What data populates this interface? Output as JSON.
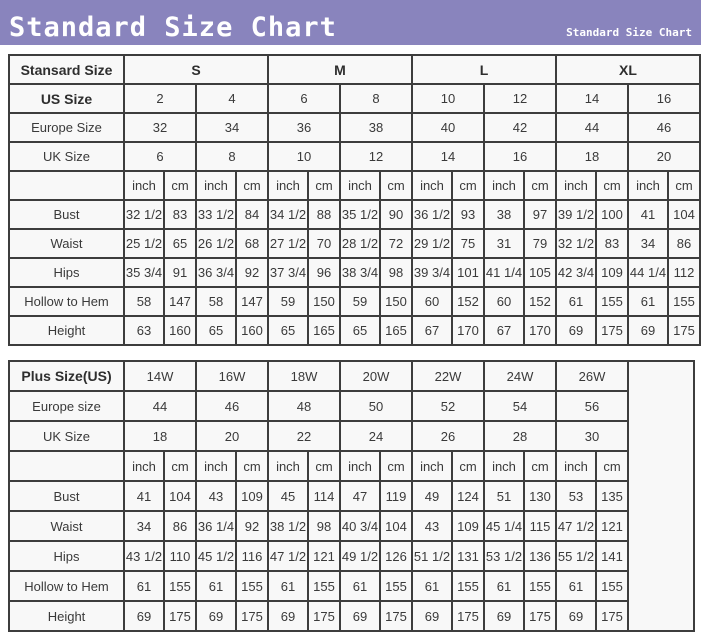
{
  "header": {
    "title": "Standard Size Chart",
    "subtitle": "Standard Size Chart"
  },
  "colors": {
    "header_bg": "#8984bd",
    "header_text": "#ffffff",
    "table_border": "#3d3d3d",
    "cell_bg": "#f8f8f8",
    "text": "#3a3a3a"
  },
  "standard_table": {
    "title_cell": "Stansard Size",
    "size_groups": [
      "S",
      "M",
      "L",
      "XL"
    ],
    "groups_bold": true,
    "units": [
      "inch",
      "cm"
    ],
    "header_rows": [
      {
        "label": "US Size",
        "bold": true,
        "values": [
          "2",
          "4",
          "6",
          "8",
          "10",
          "12",
          "14",
          "16"
        ]
      },
      {
        "label": "Europe Size",
        "bold": false,
        "values": [
          "32",
          "34",
          "36",
          "38",
          "40",
          "42",
          "44",
          "46"
        ]
      },
      {
        "label": "UK Size",
        "bold": false,
        "values": [
          "6",
          "8",
          "10",
          "12",
          "14",
          "16",
          "18",
          "20"
        ]
      }
    ],
    "measurement_rows": [
      {
        "label": "Bust",
        "values": [
          "32 1/2",
          "83",
          "33 1/2",
          "84",
          "34 1/2",
          "88",
          "35 1/2",
          "90",
          "36 1/2",
          "93",
          "38",
          "97",
          "39 1/2",
          "100",
          "41",
          "104"
        ]
      },
      {
        "label": "Waist",
        "values": [
          "25 1/2",
          "65",
          "26 1/2",
          "68",
          "27 1/2",
          "70",
          "28 1/2",
          "72",
          "29 1/2",
          "75",
          "31",
          "79",
          "32 1/2",
          "83",
          "34",
          "86"
        ]
      },
      {
        "label": "Hips",
        "values": [
          "35 3/4",
          "91",
          "36 3/4",
          "92",
          "37 3/4",
          "96",
          "38 3/4",
          "98",
          "39 3/4",
          "101",
          "41 1/4",
          "105",
          "42 3/4",
          "109",
          "44 1/4",
          "112"
        ]
      },
      {
        "label": "Hollow to Hem",
        "values": [
          "58",
          "147",
          "58",
          "147",
          "59",
          "150",
          "59",
          "150",
          "60",
          "152",
          "60",
          "152",
          "61",
          "155",
          "61",
          "155"
        ]
      },
      {
        "label": "Height",
        "values": [
          "63",
          "160",
          "65",
          "160",
          "65",
          "165",
          "65",
          "165",
          "67",
          "170",
          "67",
          "170",
          "69",
          "175",
          "69",
          "175"
        ]
      }
    ]
  },
  "plus_table": {
    "title_cell": "Plus Size(US)",
    "size_groups": [
      "14W",
      "16W",
      "18W",
      "20W",
      "22W",
      "24W",
      "26W"
    ],
    "groups_bold": false,
    "units": [
      "inch",
      "cm"
    ],
    "header_rows": [
      {
        "label": "Europe size",
        "bold": false,
        "values": [
          "44",
          "46",
          "48",
          "50",
          "52",
          "54",
          "56"
        ]
      },
      {
        "label": "UK Size",
        "bold": false,
        "values": [
          "18",
          "20",
          "22",
          "24",
          "26",
          "28",
          "30"
        ]
      }
    ],
    "measurement_rows": [
      {
        "label": "Bust",
        "values": [
          "41",
          "104",
          "43",
          "109",
          "45",
          "114",
          "47",
          "119",
          "49",
          "124",
          "51",
          "130",
          "53",
          "135"
        ]
      },
      {
        "label": "Waist",
        "values": [
          "34",
          "86",
          "36 1/4",
          "92",
          "38 1/2",
          "98",
          "40 3/4",
          "104",
          "43",
          "109",
          "45 1/4",
          "115",
          "47 1/2",
          "121"
        ]
      },
      {
        "label": "Hips",
        "values": [
          "43 1/2",
          "110",
          "45 1/2",
          "116",
          "47 1/2",
          "121",
          "49 1/2",
          "126",
          "51 1/2",
          "131",
          "53 1/2",
          "136",
          "55 1/2",
          "141"
        ]
      },
      {
        "label": "Hollow to Hem",
        "values": [
          "61",
          "155",
          "61",
          "155",
          "61",
          "155",
          "61",
          "155",
          "61",
          "155",
          "61",
          "155",
          "61",
          "155"
        ]
      },
      {
        "label": "Height",
        "values": [
          "69",
          "175",
          "69",
          "175",
          "69",
          "175",
          "69",
          "175",
          "69",
          "175",
          "69",
          "175",
          "69",
          "175"
        ]
      }
    ]
  }
}
